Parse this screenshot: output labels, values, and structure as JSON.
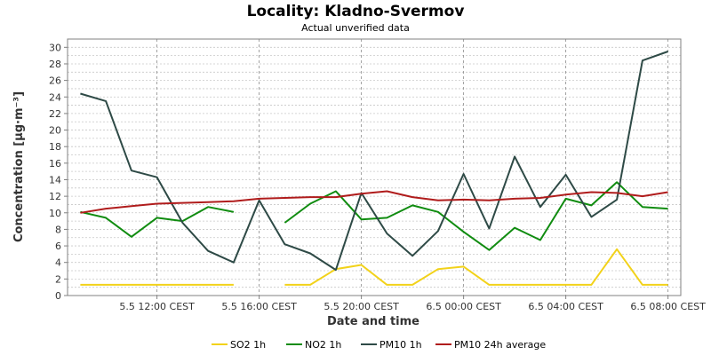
{
  "chart_data": {
    "type": "line",
    "title": "Locality: Kladno-Svermov",
    "subtitle": "Actual unverified data",
    "xlabel": "Date and time",
    "ylabel": "Concentration [µg·m⁻³]",
    "ylim": [
      0,
      31
    ],
    "yticks": [
      0,
      2,
      4,
      6,
      8,
      10,
      12,
      14,
      16,
      18,
      20,
      22,
      24,
      26,
      28,
      30
    ],
    "x_hours": [
      9,
      10,
      11,
      12,
      13,
      14,
      15,
      16,
      17,
      18,
      19,
      20,
      21,
      22,
      23,
      24,
      25,
      26,
      27,
      28,
      29,
      30,
      31,
      32
    ],
    "xlim_hours": [
      8.5,
      32.5
    ],
    "xticks": [
      {
        "hour": 12,
        "label": "5.5 12:00 CEST"
      },
      {
        "hour": 16,
        "label": "5.5 16:00 CEST"
      },
      {
        "hour": 20,
        "label": "5.5 20:00 CEST"
      },
      {
        "hour": 24,
        "label": "6.5 00:00 CEST"
      },
      {
        "hour": 28,
        "label": "6.5 04:00 CEST"
      },
      {
        "hour": 32,
        "label": "6.5 08:00 CEST"
      }
    ],
    "grid": true,
    "legend_position": "bottom",
    "series": [
      {
        "name": "SO2 1h",
        "color": "#f2d21a",
        "values": [
          1.3,
          1.3,
          1.3,
          1.3,
          1.3,
          1.3,
          1.3,
          null,
          1.3,
          1.3,
          3.2,
          3.7,
          1.3,
          1.3,
          3.2,
          3.5,
          1.3,
          1.3,
          1.3,
          1.3,
          1.3,
          5.6,
          1.3,
          1.3
        ]
      },
      {
        "name": "NO2 1h",
        "color": "#108c10",
        "values": [
          10.1,
          9.4,
          7.1,
          9.4,
          9.0,
          10.7,
          10.1,
          null,
          8.8,
          11.1,
          12.6,
          9.2,
          9.4,
          10.9,
          10.1,
          7.7,
          5.5,
          8.2,
          6.7,
          11.7,
          10.9,
          13.7,
          10.7,
          10.5
        ]
      },
      {
        "name": "PM10 1h",
        "color": "#2e4a46",
        "values": [
          24.4,
          23.5,
          15.1,
          14.3,
          8.8,
          5.4,
          4.0,
          11.5,
          6.2,
          5.1,
          3.1,
          12.4,
          7.5,
          4.8,
          7.8,
          14.7,
          8.1,
          16.8,
          10.7,
          14.6,
          9.5,
          11.6,
          28.4,
          29.5
        ]
      },
      {
        "name": "PM10 24h average",
        "color": "#b01c1c",
        "values": [
          10.0,
          10.5,
          10.8,
          11.1,
          11.2,
          11.3,
          11.4,
          11.7,
          11.8,
          11.9,
          11.9,
          12.3,
          12.6,
          11.9,
          11.5,
          11.6,
          11.5,
          11.7,
          11.8,
          12.2,
          12.5,
          12.4,
          12.0,
          12.5
        ]
      }
    ]
  }
}
